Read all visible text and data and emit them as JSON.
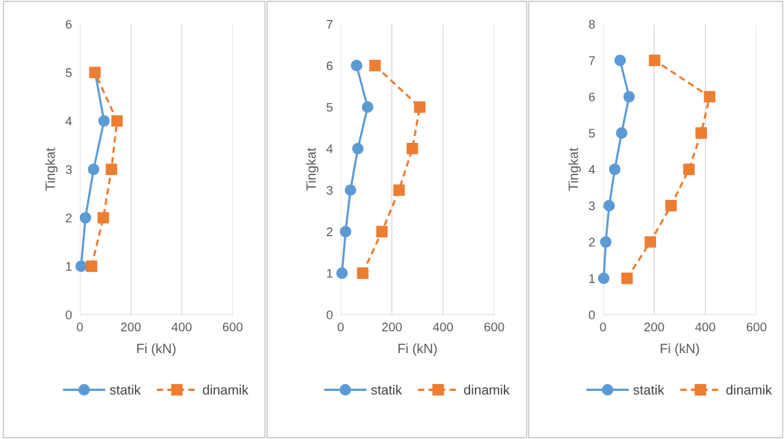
{
  "chart_data": [
    {
      "type": "line",
      "xlabel": "Fi (kN)",
      "ylabel": "Tingkat",
      "xlim": [
        0,
        600
      ],
      "xticks": [
        0,
        200,
        400,
        600
      ],
      "ylim": [
        0,
        6
      ],
      "yticks": [
        0,
        1,
        2,
        3,
        4,
        5,
        6
      ],
      "grid": "x",
      "legend": "bottom",
      "series": [
        {
          "name": "statik",
          "color": "#5b9bd5",
          "marker": "circle",
          "line_style": "solid",
          "x": [
            5,
            22,
            54,
            95,
            60
          ],
          "values": [
            1,
            2,
            3,
            4,
            5
          ]
        },
        {
          "name": "dinamik",
          "color": "#ed7d31",
          "marker": "square",
          "line_style": "dashed",
          "x": [
            46,
            92,
            124,
            146,
            59
          ],
          "values": [
            1,
            2,
            3,
            4,
            5
          ]
        }
      ]
    },
    {
      "type": "line",
      "xlabel": "Fi (kN)",
      "ylabel": "Tingkat",
      "xlim": [
        0,
        600
      ],
      "xticks": [
        0,
        200,
        400,
        600
      ],
      "ylim": [
        0,
        7
      ],
      "yticks": [
        0,
        1,
        2,
        3,
        4,
        5,
        6,
        7
      ],
      "grid": "x",
      "legend": "bottom",
      "series": [
        {
          "name": "statik",
          "color": "#5b9bd5",
          "marker": "circle",
          "line_style": "solid",
          "x": [
            5,
            19,
            38,
            67,
            105,
            62
          ],
          "values": [
            1,
            2,
            3,
            4,
            5,
            6
          ]
        },
        {
          "name": "dinamik",
          "color": "#ed7d31",
          "marker": "square",
          "line_style": "dashed",
          "x": [
            86,
            161,
            228,
            280,
            309,
            134
          ],
          "values": [
            1,
            2,
            3,
            4,
            5,
            6
          ]
        }
      ]
    },
    {
      "type": "line",
      "xlabel": "Fi (kN)",
      "ylabel": "Tingkat",
      "xlim": [
        0,
        600
      ],
      "xticks": [
        0,
        200,
        400,
        600
      ],
      "ylim": [
        0,
        8
      ],
      "yticks": [
        0,
        1,
        2,
        3,
        4,
        5,
        6,
        7,
        8
      ],
      "grid": "x",
      "legend": "bottom",
      "series": [
        {
          "name": "statik",
          "color": "#5b9bd5",
          "marker": "circle",
          "line_style": "solid",
          "x": [
            3,
            11,
            24,
            46,
            73,
            102,
            67
          ],
          "values": [
            1,
            2,
            3,
            4,
            5,
            6,
            7
          ]
        },
        {
          "name": "dinamik",
          "color": "#ed7d31",
          "marker": "square",
          "line_style": "dashed",
          "x": [
            94,
            185,
            266,
            336,
            384,
            417,
            202
          ],
          "values": [
            1,
            2,
            3,
            4,
            5,
            6,
            7
          ]
        }
      ]
    }
  ]
}
